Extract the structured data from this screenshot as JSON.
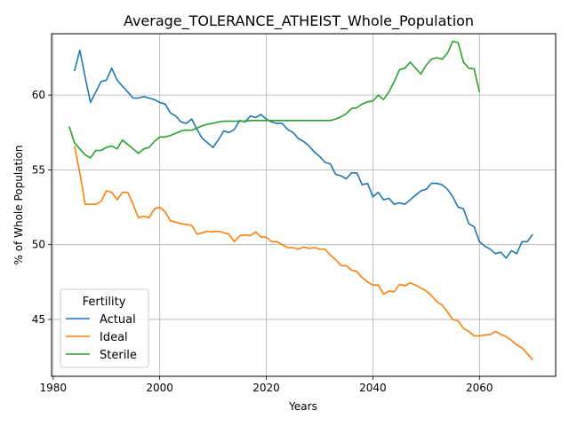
{
  "chart_data": {
    "type": "line",
    "title": "Average_TOLERANCE_ATHEIST_Whole_Population",
    "xlabel": "Years",
    "ylabel": "% of Whole Population",
    "xlim": [
      1979.7,
      2074.3
    ],
    "ylim": [
      41.2,
      64.1
    ],
    "xticks": [
      1980,
      2000,
      2020,
      2040,
      2060
    ],
    "yticks": [
      45,
      50,
      55,
      60
    ],
    "grid": true,
    "legend": {
      "title": "Fertility",
      "placement": "lower-left"
    },
    "series": [
      {
        "name": "Actual",
        "color": "#1f77b4",
        "x": [
          1984,
          1985,
          1986,
          1987,
          1988,
          1989,
          1990,
          1991,
          1992,
          1993,
          1994,
          1995,
          1996,
          1997,
          1998,
          1999,
          2000,
          2001,
          2002,
          2003,
          2004,
          2005,
          2006,
          2007,
          2008,
          2009,
          2010,
          2011,
          2012,
          2013,
          2014,
          2015,
          2016,
          2017,
          2018,
          2019,
          2020,
          2021,
          2022,
          2023,
          2024,
          2025,
          2026,
          2027,
          2028,
          2029,
          2030,
          2031,
          2032,
          2033,
          2034,
          2035,
          2036,
          2037,
          2038,
          2039,
          2040,
          2041,
          2042,
          2043,
          2044,
          2045,
          2046,
          2047,
          2048,
          2049,
          2050,
          2051,
          2052,
          2053,
          2054,
          2055,
          2056,
          2057,
          2058,
          2059,
          2060,
          2061,
          2062,
          2063,
          2064,
          2065,
          2066,
          2067,
          2068,
          2069,
          2070
        ],
        "values": [
          61.6,
          63.0,
          61.2,
          59.5,
          60.2,
          60.9,
          61.0,
          61.8,
          61.0,
          60.6,
          60.2,
          59.8,
          59.8,
          59.9,
          59.8,
          59.7,
          59.5,
          59.4,
          58.8,
          58.6,
          58.2,
          58.1,
          58.4,
          57.7,
          57.1,
          56.8,
          56.5,
          57.0,
          57.6,
          57.5,
          57.7,
          58.3,
          58.2,
          58.6,
          58.5,
          58.7,
          58.4,
          58.2,
          58.1,
          58.1,
          57.7,
          57.5,
          57.1,
          56.9,
          56.6,
          56.2,
          55.9,
          55.5,
          55.4,
          54.7,
          54.6,
          54.4,
          54.8,
          54.8,
          54.0,
          54.1,
          53.2,
          53.5,
          53.0,
          53.1,
          52.7,
          52.8,
          52.7,
          53.0,
          53.3,
          53.6,
          53.7,
          54.1,
          54.1,
          54.0,
          53.7,
          53.2,
          52.5,
          52.4,
          51.4,
          51.2,
          50.2,
          49.9,
          49.7,
          49.4,
          49.5,
          49.1,
          49.6,
          49.4,
          50.2,
          50.2,
          50.7
        ]
      },
      {
        "name": "Ideal",
        "color": "#ff7f0e",
        "x": [
          1984,
          1985,
          1986,
          1987,
          1988,
          1989,
          1990,
          1991,
          1992,
          1993,
          1994,
          1995,
          1996,
          1997,
          1998,
          1999,
          2000,
          2001,
          2002,
          2003,
          2004,
          2005,
          2006,
          2007,
          2008,
          2009,
          2010,
          2011,
          2012,
          2013,
          2014,
          2015,
          2016,
          2017,
          2018,
          2019,
          2020,
          2021,
          2022,
          2023,
          2024,
          2025,
          2026,
          2027,
          2028,
          2029,
          2030,
          2031,
          2032,
          2033,
          2034,
          2035,
          2036,
          2037,
          2038,
          2039,
          2040,
          2041,
          2042,
          2043,
          2044,
          2045,
          2046,
          2047,
          2048,
          2049,
          2050,
          2051,
          2052,
          2053,
          2054,
          2055,
          2056,
          2057,
          2058,
          2059,
          2060,
          2061,
          2062,
          2063,
          2064,
          2065,
          2066,
          2067,
          2068,
          2069,
          2070
        ],
        "values": [
          56.6,
          54.8,
          52.7,
          52.7,
          52.7,
          52.9,
          53.6,
          53.5,
          53.0,
          53.5,
          53.5,
          52.7,
          51.8,
          51.9,
          51.8,
          52.4,
          52.5,
          52.2,
          51.6,
          51.5,
          51.4,
          51.35,
          51.3,
          50.7,
          50.8,
          50.9,
          50.85,
          50.9,
          50.8,
          50.7,
          50.2,
          50.6,
          50.65,
          50.6,
          50.85,
          50.5,
          50.5,
          50.2,
          50.2,
          50.0,
          49.8,
          49.8,
          49.7,
          49.85,
          49.75,
          49.8,
          49.7,
          49.7,
          49.3,
          49.0,
          48.6,
          48.6,
          48.3,
          48.2,
          47.8,
          47.5,
          47.3,
          47.3,
          46.7,
          46.9,
          46.85,
          47.35,
          47.25,
          47.45,
          47.3,
          47.1,
          46.9,
          46.6,
          46.2,
          45.95,
          45.5,
          45.0,
          44.9,
          44.4,
          44.2,
          43.9,
          43.9,
          43.95,
          44.0,
          44.2,
          44.0,
          43.85,
          43.6,
          43.3,
          43.1,
          42.7,
          42.3
        ]
      },
      {
        "name": "Sterile",
        "color": "#2ca02c",
        "x": [
          1983,
          1984,
          1985,
          1986,
          1987,
          1988,
          1989,
          1990,
          1991,
          1992,
          1993,
          1994,
          1995,
          1996,
          1997,
          1998,
          1999,
          2000,
          2001,
          2002,
          2003,
          2004,
          2005,
          2006,
          2007,
          2008,
          2009,
          2010,
          2011,
          2012,
          2013,
          2014,
          2015,
          2016,
          2017,
          2018,
          2019,
          2020,
          2021,
          2022,
          2023,
          2024,
          2025,
          2026,
          2027,
          2028,
          2029,
          2030,
          2031,
          2032,
          2033,
          2034,
          2035,
          2036,
          2037,
          2038,
          2039,
          2040,
          2041,
          2042,
          2043,
          2044,
          2045,
          2046,
          2047,
          2048,
          2049,
          2050,
          2051,
          2052,
          2053,
          2054,
          2055,
          2056,
          2057,
          2058,
          2059,
          2060
        ],
        "values": [
          57.9,
          56.8,
          56.4,
          56.0,
          55.8,
          56.3,
          56.3,
          56.5,
          56.6,
          56.4,
          57.0,
          56.7,
          56.4,
          56.1,
          56.4,
          56.5,
          56.9,
          57.2,
          57.2,
          57.3,
          57.45,
          57.6,
          57.65,
          57.65,
          57.8,
          57.95,
          58.05,
          58.1,
          58.2,
          58.25,
          58.25,
          58.25,
          58.25,
          58.25,
          58.3,
          58.3,
          58.3,
          58.3,
          58.3,
          58.3,
          58.3,
          58.3,
          58.3,
          58.3,
          58.3,
          58.3,
          58.3,
          58.3,
          58.3,
          58.3,
          58.4,
          58.55,
          58.75,
          59.1,
          59.15,
          59.4,
          59.55,
          59.6,
          60.0,
          59.7,
          60.2,
          60.9,
          61.7,
          61.8,
          62.2,
          61.8,
          61.4,
          62.0,
          62.4,
          62.5,
          62.4,
          62.8,
          63.6,
          63.5,
          62.2,
          61.8,
          61.75,
          60.2
        ]
      }
    ]
  }
}
